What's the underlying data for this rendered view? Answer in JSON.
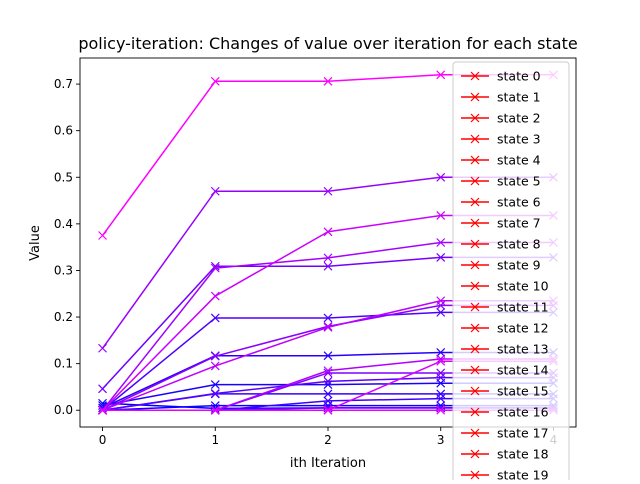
{
  "chart_data": {
    "type": "line",
    "title": "policy-iteration: Changes of value over iteration for each state",
    "xlabel": "ith Iteration",
    "ylabel": "Value",
    "xlim": [
      -0.2,
      4.2
    ],
    "ylim": [
      -0.036,
      0.756
    ],
    "x": [
      0,
      1,
      2,
      3,
      4
    ],
    "xticks": [
      "0",
      "1",
      "2",
      "3",
      "4"
    ],
    "yticks": [
      "0.0",
      "0.1",
      "0.2",
      "0.3",
      "0.4",
      "0.5",
      "0.6",
      "0.7"
    ],
    "ytick_values": [
      0.0,
      0.1,
      0.2,
      0.3,
      0.4,
      0.5,
      0.6,
      0.7
    ],
    "grid": false,
    "legend_placement": "upper-right",
    "legend_color": "#ff0000",
    "marker": "x",
    "series": [
      {
        "name": "state 0",
        "color": "#0000ff",
        "values": [
          0.015,
          0.004,
          0.005,
          0.005,
          0.005
        ]
      },
      {
        "name": "state 1",
        "color": "#0d00ff",
        "values": [
          0.0,
          0.01,
          0.01,
          0.01,
          0.01
        ]
      },
      {
        "name": "state 2",
        "color": "#1a00ff",
        "values": [
          0.01,
          0.055,
          0.055,
          0.058,
          0.058
        ]
      },
      {
        "name": "state 3",
        "color": "#2600ff",
        "values": [
          0.005,
          0.117,
          0.117,
          0.124,
          0.124
        ]
      },
      {
        "name": "state 4",
        "color": "#3300ff",
        "values": [
          0.0,
          0.035,
          0.035,
          0.035,
          0.035
        ]
      },
      {
        "name": "state 5",
        "color": "#4000ff",
        "values": [
          0.0,
          0.0,
          0.02,
          0.025,
          0.025
        ]
      },
      {
        "name": "state 6",
        "color": "#4d00ff",
        "values": [
          0.0,
          0.198,
          0.198,
          0.21,
          0.21
        ]
      },
      {
        "name": "state 7",
        "color": "#5900ff",
        "values": [
          0.0,
          0.036,
          0.062,
          0.07,
          0.07
        ]
      },
      {
        "name": "state 8",
        "color": "#6600ff",
        "values": [
          0.0,
          0.0,
          0.005,
          0.005,
          0.005
        ]
      },
      {
        "name": "state 9",
        "color": "#7300ff",
        "values": [
          0.046,
          0.309,
          0.309,
          0.328,
          0.328
        ]
      },
      {
        "name": "state 10",
        "color": "#8000ff",
        "values": [
          0.0,
          0.0,
          0.08,
          0.08,
          0.08
        ]
      },
      {
        "name": "state 11",
        "color": "#8c00ff",
        "values": [
          0.0,
          0.116,
          0.18,
          0.225,
          0.225
        ]
      },
      {
        "name": "state 12",
        "color": "#9900ff",
        "values": [
          0.133,
          0.47,
          0.47,
          0.5,
          0.5
        ]
      },
      {
        "name": "state 13",
        "color": "#a600ff",
        "values": [
          0.0,
          0.305,
          0.327,
          0.36,
          0.36
        ]
      },
      {
        "name": "state 14",
        "color": "#b200ff",
        "values": [
          0.0,
          0.0,
          0.085,
          0.11,
          0.11
        ]
      },
      {
        "name": "state 15",
        "color": "#bf00ff",
        "values": [
          0.0,
          0.095,
          0.178,
          0.235,
          0.235
        ]
      },
      {
        "name": "state 16",
        "color": "#cc00ff",
        "values": [
          0.0,
          0.245,
          0.383,
          0.418,
          0.418
        ]
      },
      {
        "name": "state 17",
        "color": "#d900ff",
        "values": [
          0.0,
          0.0,
          0.0,
          0.105,
          0.105
        ]
      },
      {
        "name": "state 18",
        "color": "#e600ff",
        "values": [
          0.0,
          0.0,
          0.0,
          0.0,
          0.0
        ]
      },
      {
        "name": "state 19",
        "color": "#ff00ff",
        "values": [
          0.375,
          0.706,
          0.706,
          0.72,
          0.72
        ]
      }
    ]
  }
}
